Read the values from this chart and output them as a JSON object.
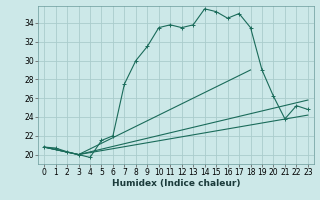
{
  "title": "",
  "xlabel": "Humidex (Indice chaleur)",
  "ylabel": "",
  "bg_color": "#cce8e8",
  "grid_color": "#aacccc",
  "line_color": "#1a6b5a",
  "xlim": [
    -0.5,
    23.5
  ],
  "ylim": [
    19.0,
    35.8
  ],
  "xticks": [
    0,
    1,
    2,
    3,
    4,
    5,
    6,
    7,
    8,
    9,
    10,
    11,
    12,
    13,
    14,
    15,
    16,
    17,
    18,
    19,
    20,
    21,
    22,
    23
  ],
  "yticks": [
    20,
    22,
    24,
    26,
    28,
    30,
    32,
    34
  ],
  "series1": [
    [
      0,
      20.8
    ],
    [
      1,
      20.7
    ],
    [
      2,
      20.3
    ],
    [
      3,
      20.0
    ],
    [
      4,
      19.7
    ],
    [
      5,
      21.5
    ],
    [
      6,
      22.0
    ],
    [
      7,
      27.5
    ],
    [
      8,
      30.0
    ],
    [
      9,
      31.5
    ],
    [
      10,
      33.5
    ],
    [
      11,
      33.8
    ],
    [
      12,
      33.5
    ],
    [
      13,
      33.8
    ],
    [
      14,
      35.5
    ],
    [
      15,
      35.2
    ],
    [
      16,
      34.5
    ],
    [
      17,
      35.0
    ],
    [
      18,
      33.5
    ],
    [
      19,
      29.0
    ],
    [
      20,
      26.2
    ],
    [
      21,
      23.8
    ],
    [
      22,
      25.2
    ],
    [
      23,
      24.8
    ]
  ],
  "series2": [
    [
      0,
      20.8
    ],
    [
      3,
      20.0
    ],
    [
      18,
      29.0
    ]
  ],
  "series3": [
    [
      0,
      20.8
    ],
    [
      3,
      20.0
    ],
    [
      23,
      25.8
    ]
  ],
  "series4": [
    [
      0,
      20.8
    ],
    [
      3,
      20.0
    ],
    [
      23,
      24.2
    ]
  ],
  "marker_s1": "D",
  "figsize": [
    3.2,
    2.0
  ],
  "dpi": 100
}
